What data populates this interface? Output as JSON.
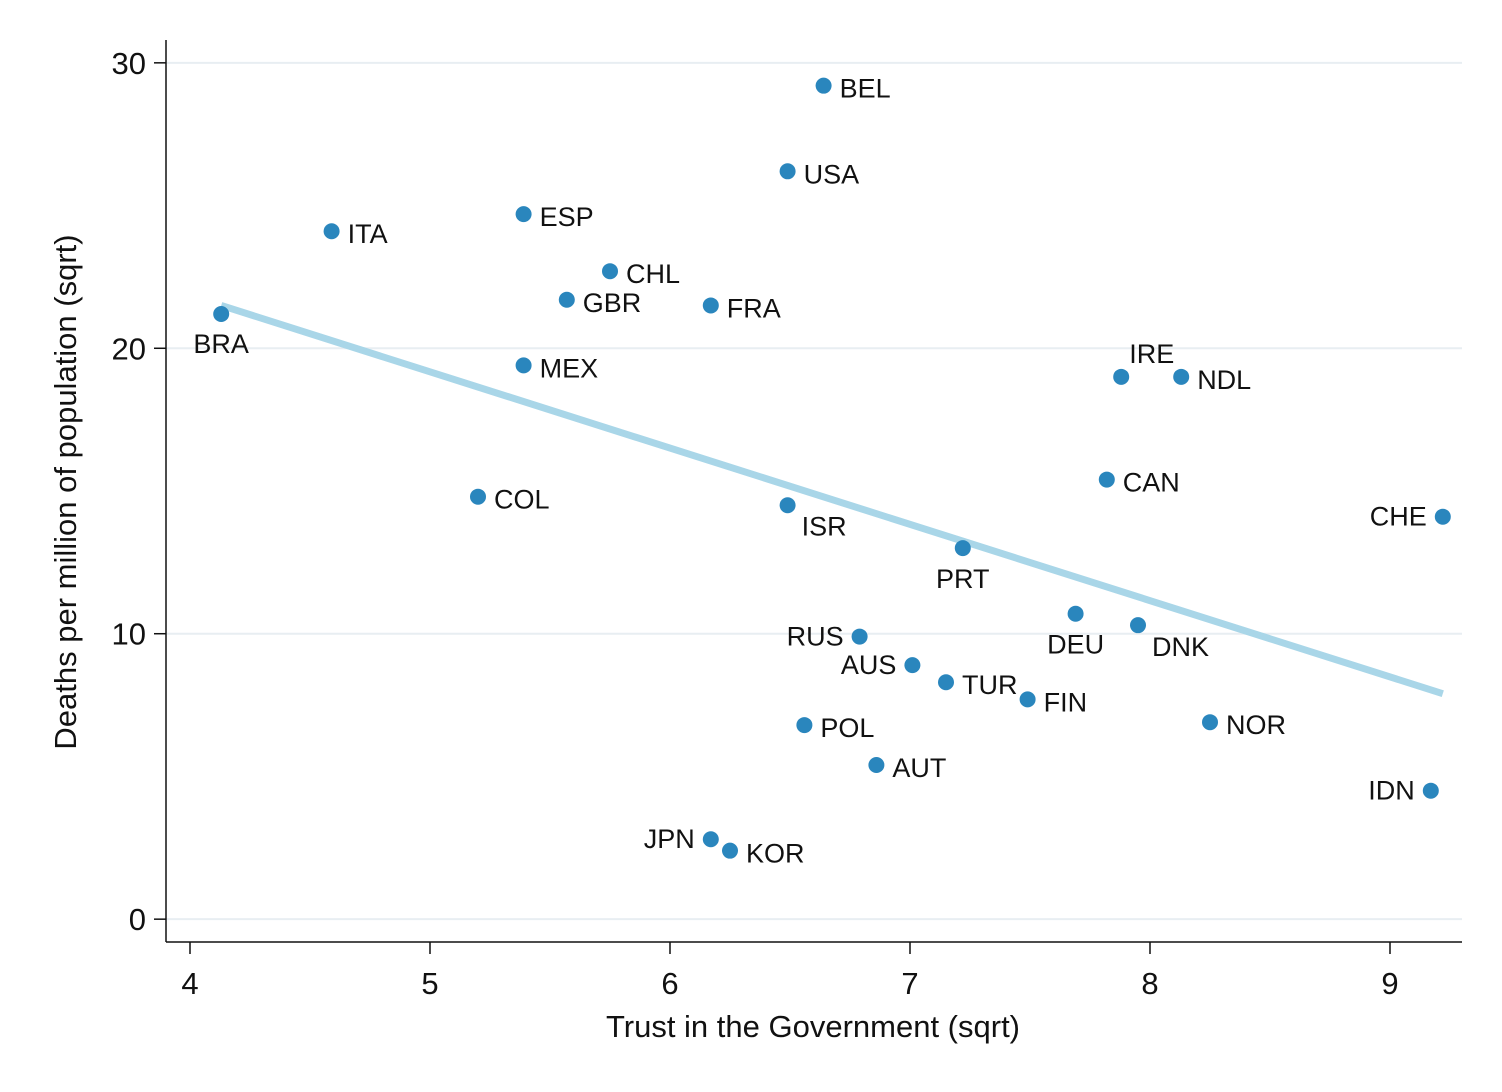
{
  "chart_data": {
    "type": "scatter",
    "title": "",
    "xlabel": "Trust in the Government (sqrt)",
    "ylabel": "Deaths per million of population (sqrt)",
    "xlim": [
      3.9,
      9.3
    ],
    "ylim": [
      -0.8,
      30.8
    ],
    "xticks": [
      4,
      5,
      6,
      7,
      8,
      9
    ],
    "yticks": [
      0,
      10,
      20,
      30
    ],
    "grid": true,
    "point_color": "#2a86bd",
    "fit_color": "#a9d6e8",
    "fit_line": {
      "x": [
        4.13,
        9.22
      ],
      "y": [
        21.5,
        7.9
      ]
    },
    "points": [
      {
        "label": "BEL",
        "x": 6.64,
        "y": 29.2,
        "pos": "right"
      },
      {
        "label": "USA",
        "x": 6.49,
        "y": 26.2,
        "pos": "right"
      },
      {
        "label": "ESP",
        "x": 5.39,
        "y": 24.7,
        "pos": "right"
      },
      {
        "label": "ITA",
        "x": 4.59,
        "y": 24.1,
        "pos": "right"
      },
      {
        "label": "CHL",
        "x": 5.75,
        "y": 22.7,
        "pos": "right"
      },
      {
        "label": "GBR",
        "x": 5.57,
        "y": 21.7,
        "pos": "right"
      },
      {
        "label": "FRA",
        "x": 6.17,
        "y": 21.5,
        "pos": "right"
      },
      {
        "label": "BRA",
        "x": 4.13,
        "y": 21.2,
        "pos": "below"
      },
      {
        "label": "MEX",
        "x": 5.39,
        "y": 19.4,
        "pos": "right"
      },
      {
        "label": "IRE",
        "x": 7.88,
        "y": 19.0,
        "pos": "above"
      },
      {
        "label": "NDL",
        "x": 8.13,
        "y": 19.0,
        "pos": "right"
      },
      {
        "label": "CAN",
        "x": 7.82,
        "y": 15.4,
        "pos": "right"
      },
      {
        "label": "COL",
        "x": 5.2,
        "y": 14.8,
        "pos": "right"
      },
      {
        "label": "ISR",
        "x": 6.49,
        "y": 14.5,
        "pos": "below"
      },
      {
        "label": "CHE",
        "x": 9.22,
        "y": 14.1,
        "pos": "left"
      },
      {
        "label": "PRT",
        "x": 7.22,
        "y": 13.0,
        "pos": "below"
      },
      {
        "label": "DEU",
        "x": 7.69,
        "y": 10.7,
        "pos": "below"
      },
      {
        "label": "DNK",
        "x": 7.95,
        "y": 10.3,
        "pos": "belowright"
      },
      {
        "label": "RUS",
        "x": 6.79,
        "y": 9.9,
        "pos": "left"
      },
      {
        "label": "AUS",
        "x": 7.01,
        "y": 8.9,
        "pos": "left"
      },
      {
        "label": "TUR",
        "x": 7.15,
        "y": 8.3,
        "pos": "right"
      },
      {
        "label": "FIN",
        "x": 7.49,
        "y": 7.7,
        "pos": "right"
      },
      {
        "label": "NOR",
        "x": 8.25,
        "y": 6.9,
        "pos": "right"
      },
      {
        "label": "POL",
        "x": 6.56,
        "y": 6.8,
        "pos": "right"
      },
      {
        "label": "AUT",
        "x": 6.86,
        "y": 5.4,
        "pos": "right"
      },
      {
        "label": "IDN",
        "x": 9.17,
        "y": 4.5,
        "pos": "left"
      },
      {
        "label": "JPN",
        "x": 6.17,
        "y": 2.8,
        "pos": "left"
      },
      {
        "label": "KOR",
        "x": 6.25,
        "y": 2.4,
        "pos": "right"
      }
    ]
  }
}
